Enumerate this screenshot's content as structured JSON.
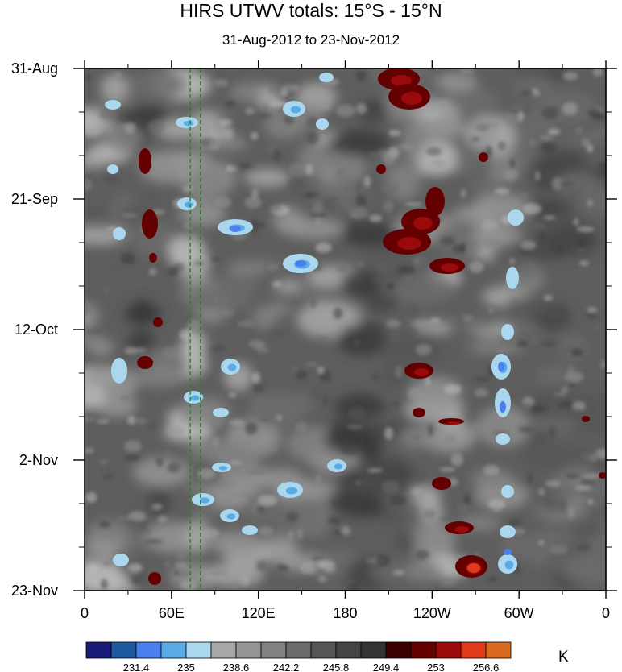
{
  "chart_data": {
    "type": "heatmap",
    "title": "HIRS UTWV totals: 15°S - 15°N",
    "subtitle": "31-Aug-2012 to 23-Nov-2012",
    "x_ticks": [
      "0",
      "60E",
      "120E",
      "180",
      "120W",
      "60W",
      "0"
    ],
    "y_ticks": [
      "31-Aug",
      "21-Sep",
      "12-Oct",
      "2-Nov",
      "23-Nov"
    ],
    "units": "K",
    "colorbar": {
      "labels": [
        "231.4",
        "235",
        "238.6",
        "242.2",
        "245.8",
        "249.4",
        "253",
        "256.6"
      ],
      "colors": [
        "#1a1a78",
        "#1e5aa0",
        "#4b7ff0",
        "#5aaae6",
        "#aad7ee",
        "#a8a8a8",
        "#959595",
        "#828282",
        "#6b6b6b",
        "#555555",
        "#444444",
        "#333333",
        "#3c0000",
        "#640000",
        "#9b0a0a",
        "#e03a1a",
        "#d96a20"
      ]
    },
    "features": {
      "wet_bands_deg_east": [
        10,
        70,
        250,
        290
      ],
      "dry_bands_deg_east": [
        40,
        190,
        300
      ],
      "reference_lines_deg_east": [
        73,
        80
      ]
    }
  }
}
